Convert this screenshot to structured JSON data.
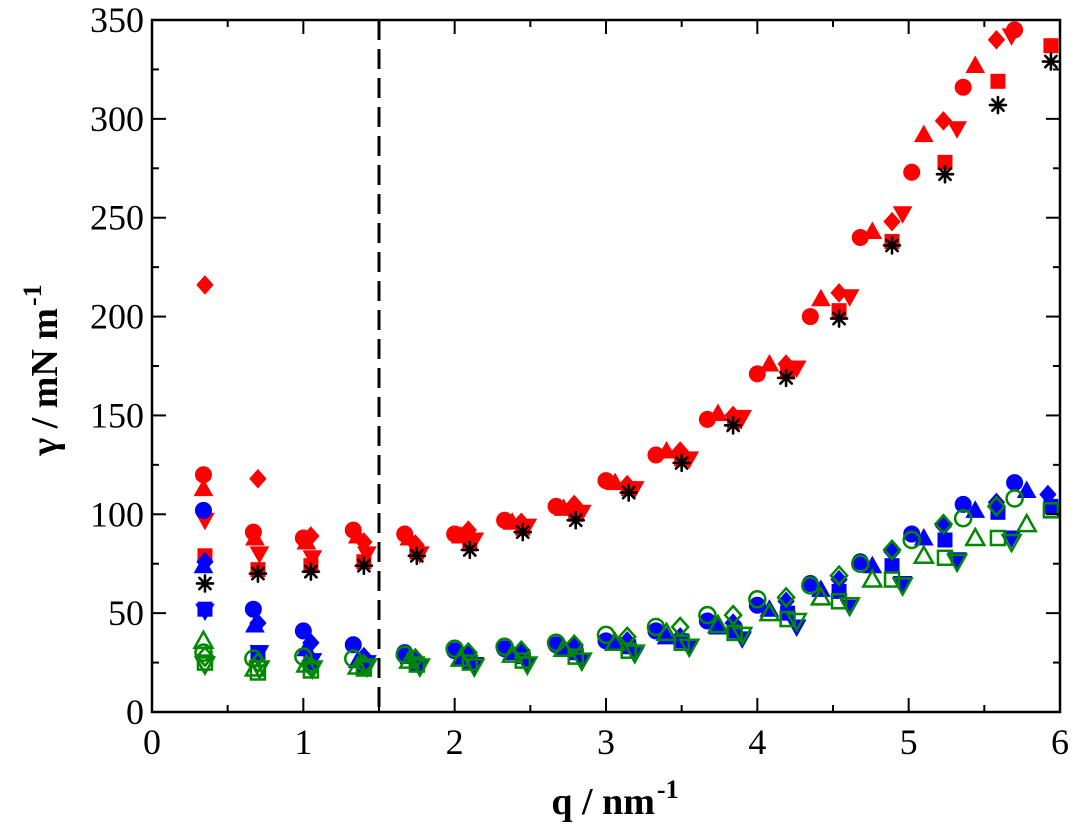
{
  "chart_data": {
    "type": "scatter",
    "title": "",
    "xlabel": {
      "text": "q / nm",
      "superscript": "-1"
    },
    "ylabel": {
      "text": "γ / mN m",
      "superscript": "-1"
    },
    "xlim": [
      0,
      6
    ],
    "ylim": [
      0,
      350
    ],
    "xticks": [
      0,
      1,
      2,
      3,
      4,
      5,
      6
    ],
    "xtick_labels": [
      "0",
      "1",
      "2",
      "3",
      "4",
      "5",
      "6"
    ],
    "yticks": [
      0,
      50,
      100,
      150,
      200,
      250,
      300,
      350
    ],
    "ytick_labels": [
      "0",
      "50",
      "100",
      "150",
      "200",
      "250",
      "300",
      "350"
    ],
    "grid": false,
    "vline": {
      "x": 1.5,
      "style": "dashed",
      "color": "#000000"
    },
    "colors": {
      "red": "#ff0000",
      "blue": "#0000ff",
      "green": "#008800",
      "black": "#000000"
    },
    "series": [
      {
        "name": "red-circle",
        "color": "#ff0000",
        "marker": "circle",
        "filled": true,
        "x": [
          0.34,
          0.67,
          1.0,
          1.33,
          1.67,
          2.0,
          2.33,
          2.67,
          3.0,
          3.33,
          3.67,
          4.0,
          4.35,
          4.68,
          5.02,
          5.36,
          5.7
        ],
        "y": [
          120,
          91,
          88,
          92,
          90,
          90,
          97,
          104,
          117,
          130,
          148,
          171,
          200,
          240,
          273,
          316,
          345
        ]
      },
      {
        "name": "red-triangle-up",
        "color": "#ff0000",
        "marker": "triangle-up",
        "filled": true,
        "x": [
          0.34,
          0.68,
          1.02,
          1.36,
          1.7,
          2.04,
          2.38,
          2.72,
          3.06,
          3.4,
          3.74,
          4.08,
          4.42,
          4.76,
          5.1,
          5.44
        ],
        "y": [
          113,
          88,
          86,
          89,
          88,
          89,
          96,
          103,
          116,
          132,
          151,
          176,
          209,
          243,
          292,
          327
        ]
      },
      {
        "name": "red-diamond",
        "color": "#ff0000",
        "marker": "diamond",
        "filled": true,
        "x": [
          0.35,
          0.7,
          1.05,
          1.4,
          1.74,
          2.09,
          2.44,
          2.79,
          3.14,
          3.49,
          3.84,
          4.19,
          4.54,
          4.89,
          5.23,
          5.58
        ],
        "y": [
          216,
          118,
          89,
          86,
          85,
          92,
          96,
          105,
          115,
          132,
          150,
          176,
          212,
          248,
          299,
          340
        ]
      },
      {
        "name": "red-triangle-down",
        "color": "#ff0000",
        "marker": "triangle-down",
        "filled": true,
        "x": [
          0.35,
          0.71,
          1.06,
          1.42,
          1.77,
          2.13,
          2.48,
          2.84,
          3.19,
          3.55,
          3.9,
          4.26,
          4.61,
          4.96,
          5.32,
          5.68
        ],
        "y": [
          97,
          80,
          78,
          80,
          80,
          87,
          94,
          101,
          113,
          128,
          149,
          174,
          210,
          252,
          295,
          342
        ]
      },
      {
        "name": "red-square",
        "color": "#ff0000",
        "marker": "square",
        "filled": true,
        "x": [
          0.35,
          0.7,
          1.05,
          1.4,
          1.75,
          2.1,
          2.45,
          2.8,
          3.15,
          3.5,
          3.85,
          4.2,
          4.54,
          4.89,
          5.24,
          5.59,
          5.94
        ],
        "y": [
          79,
          72,
          74,
          76,
          81,
          85,
          93,
          100,
          113,
          128,
          147,
          172,
          203,
          238,
          278,
          319,
          337
        ]
      },
      {
        "name": "black-asterisk",
        "color": "#000000",
        "marker": "asterisk",
        "filled": true,
        "x": [
          0.35,
          0.7,
          1.05,
          1.4,
          1.75,
          2.1,
          2.45,
          2.8,
          3.15,
          3.5,
          3.84,
          4.19,
          4.54,
          4.89,
          5.24,
          5.59,
          5.94
        ],
        "y": [
          65,
          70,
          71,
          74,
          79,
          82,
          91,
          97,
          111,
          126,
          145,
          169,
          199,
          236,
          272,
          307,
          329
        ]
      },
      {
        "name": "blue-circle",
        "color": "#0000ff",
        "marker": "circle",
        "filled": true,
        "x": [
          0.34,
          0.67,
          1.0,
          1.33,
          1.67,
          2.0,
          2.33,
          2.67,
          3.0,
          3.33,
          3.67,
          4.0,
          4.35,
          4.68,
          5.02,
          5.36,
          5.7
        ],
        "y": [
          102,
          52,
          41,
          34,
          30,
          31,
          32,
          34,
          36,
          41,
          46,
          54,
          65,
          76,
          90,
          105,
          116
        ]
      },
      {
        "name": "blue-triangle-up",
        "color": "#0000ff",
        "marker": "triangle-up",
        "filled": true,
        "x": [
          0.34,
          0.68,
          1.02,
          1.36,
          1.7,
          2.04,
          2.38,
          2.72,
          3.06,
          3.4,
          3.74,
          4.08,
          4.42,
          4.76,
          5.1,
          5.44,
          5.78
        ],
        "y": [
          74,
          44,
          32,
          26,
          28,
          27,
          30,
          32,
          35,
          38,
          43,
          52,
          62,
          74,
          88,
          102,
          112
        ]
      },
      {
        "name": "blue-diamond",
        "color": "#0000ff",
        "marker": "diamond",
        "filled": true,
        "x": [
          0.35,
          0.7,
          1.05,
          1.4,
          1.74,
          2.09,
          2.44,
          2.79,
          3.14,
          3.49,
          3.84,
          4.19,
          4.54,
          4.89,
          5.23,
          5.58,
          5.92
        ],
        "y": [
          76,
          45,
          35,
          28,
          27,
          29,
          31,
          33,
          36,
          38,
          45,
          56,
          67,
          81,
          94,
          106,
          110
        ]
      },
      {
        "name": "blue-square",
        "color": "#0000ff",
        "marker": "square",
        "filled": true,
        "x": [
          0.35,
          0.7,
          1.05,
          1.4,
          1.75,
          2.1,
          2.45,
          2.8,
          3.15,
          3.5,
          3.85,
          4.2,
          4.54,
          4.89,
          5.24,
          5.59,
          5.94
        ],
        "y": [
          52,
          30,
          25,
          23,
          24,
          25,
          28,
          30,
          33,
          36,
          41,
          50,
          61,
          74,
          87,
          101,
          104
        ]
      },
      {
        "name": "blue-triangle-down",
        "color": "#0000ff",
        "marker": "triangle-down",
        "filled": true,
        "x": [
          0.35,
          0.71,
          1.06,
          1.42,
          1.77,
          2.13,
          2.48,
          2.84,
          3.19,
          3.55,
          3.9,
          4.26,
          4.61,
          4.96,
          5.32,
          5.68
        ],
        "y": [
          51,
          30,
          26,
          25,
          23,
          24,
          24,
          26,
          29,
          33,
          37,
          43,
          53,
          65,
          77,
          88
        ]
      },
      {
        "name": "green-circle-open",
        "color": "#008800",
        "marker": "circle",
        "filled": false,
        "x": [
          0.34,
          0.67,
          1.0,
          1.33,
          1.67,
          2.0,
          2.33,
          2.67,
          3.0,
          3.33,
          3.67,
          4.0,
          4.35,
          4.68,
          5.02,
          5.36,
          5.7
        ],
        "y": [
          30,
          27,
          28,
          27,
          29,
          32,
          33,
          35,
          39,
          43,
          49,
          57,
          64,
          75,
          87,
          98,
          108
        ]
      },
      {
        "name": "green-triangle-up-open",
        "color": "#008800",
        "marker": "triangle-up",
        "filled": false,
        "x": [
          0.34,
          0.68,
          1.02,
          1.36,
          1.7,
          2.04,
          2.38,
          2.72,
          3.06,
          3.4,
          3.74,
          4.08,
          4.42,
          4.76,
          5.1,
          5.44,
          5.78
        ],
        "y": [
          36,
          22,
          24,
          23,
          26,
          27,
          29,
          32,
          35,
          40,
          44,
          50,
          58,
          67,
          79,
          88,
          95
        ]
      },
      {
        "name": "green-diamond-open",
        "color": "#008800",
        "marker": "diamond",
        "filled": false,
        "x": [
          0.35,
          0.7,
          1.05,
          1.4,
          1.74,
          2.09,
          2.44,
          2.79,
          3.14,
          3.49,
          3.84,
          4.19,
          4.54,
          4.89,
          5.23,
          5.58
        ],
        "y": [
          28,
          25,
          23,
          24,
          27,
          30,
          31,
          34,
          38,
          43,
          49,
          58,
          69,
          82,
          95,
          104
        ]
      },
      {
        "name": "green-square-open",
        "color": "#008800",
        "marker": "square",
        "filled": false,
        "x": [
          0.35,
          0.7,
          1.05,
          1.4,
          1.75,
          2.1,
          2.45,
          2.8,
          3.15,
          3.5,
          3.85,
          4.2,
          4.54,
          4.89,
          5.24,
          5.59,
          5.94
        ],
        "y": [
          25,
          20,
          21,
          22,
          24,
          25,
          26,
          28,
          31,
          35,
          40,
          47,
          56,
          67,
          78,
          88,
          102
        ]
      },
      {
        "name": "green-triangle-down-open",
        "color": "#008800",
        "marker": "triangle-down",
        "filled": false,
        "x": [
          0.35,
          0.71,
          1.06,
          1.42,
          1.77,
          2.13,
          2.48,
          2.84,
          3.19,
          3.55,
          3.9,
          4.26,
          4.61,
          4.96,
          5.32,
          5.68
        ],
        "y": [
          24,
          22,
          22,
          23,
          23,
          23,
          24,
          26,
          30,
          33,
          39,
          46,
          54,
          64,
          76,
          86
        ]
      }
    ]
  }
}
